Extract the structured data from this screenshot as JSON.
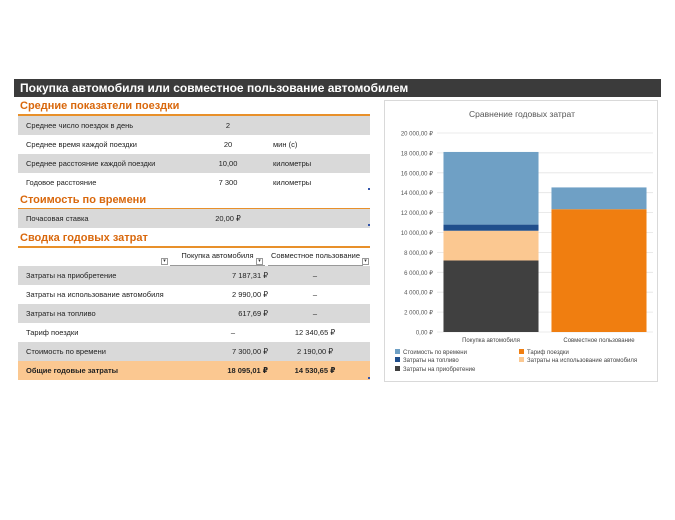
{
  "title": "Покупка автомобиля или совместное пользование автомобилем",
  "section1": {
    "heading": "Средние показатели поездки",
    "rows": [
      {
        "label": "Среднее число поездок в день",
        "value": "2",
        "unit": ""
      },
      {
        "label": "Среднее время каждой поездки",
        "value": "20",
        "unit": "мин (с)"
      },
      {
        "label": "Среднее расстояние каждой поездки",
        "value": "10,00",
        "unit": "километры"
      },
      {
        "label": "Годовое расстояние",
        "value": "7 300",
        "unit": "километры"
      }
    ]
  },
  "section2": {
    "heading": "Стоимость по времени",
    "rows": [
      {
        "label": "Почасовая ставка",
        "value": "20,00 ₽"
      }
    ]
  },
  "section3": {
    "heading": "Сводка годовых затрат",
    "headers": [
      "Покупка автомобиля",
      "Совместное пользование"
    ],
    "rows": [
      {
        "label": "Затраты на приобретение",
        "buy": "7 187,31 ₽",
        "share": "–"
      },
      {
        "label": "Затраты на использование автомобиля",
        "buy": "2 990,00 ₽",
        "share": "–"
      },
      {
        "label": "Затраты на топливо",
        "buy": "617,69 ₽",
        "share": "–"
      },
      {
        "label": "Тариф поездки",
        "buy": "–",
        "share": "12 340,65 ₽"
      },
      {
        "label": "Стоимость по времени",
        "buy": "7 300,00 ₽",
        "share": "2 190,00 ₽"
      }
    ],
    "total": {
      "label": "Общие годовые затраты",
      "buy": "18 095,01 ₽",
      "share": "14 530,65 ₽"
    }
  },
  "chart_data": {
    "type": "bar",
    "stacked": true,
    "title": "Сравнение годовых затрат",
    "categories": [
      "Покупка автомобиля",
      "Совместное пользование"
    ],
    "ylim": [
      0,
      20000
    ],
    "yticks": [
      0,
      2000,
      4000,
      6000,
      8000,
      10000,
      12000,
      14000,
      16000,
      18000,
      20000
    ],
    "ytick_labels": [
      "0,00 ₽",
      "2 000,00 ₽",
      "4 000,00 ₽",
      "6 000,00 ₽",
      "8 000,00 ₽",
      "10 000,00 ₽",
      "12 000,00 ₽",
      "14 000,00 ₽",
      "16 000,00 ₽",
      "18 000,00 ₽",
      "20 000,00 ₽"
    ],
    "grid": true,
    "legend_position": "bottom",
    "series": [
      {
        "name": "Затраты на приобретение",
        "color": "#404040",
        "values": [
          7187.31,
          0
        ]
      },
      {
        "name": "Затраты на использование автомобиля",
        "color": "#fbc891",
        "values": [
          2990.0,
          0
        ]
      },
      {
        "name": "Затраты на топливо",
        "color": "#1f4e8c",
        "values": [
          617.69,
          0
        ]
      },
      {
        "name": "Тариф поездки",
        "color": "#f07e10",
        "values": [
          0,
          12340.65
        ]
      },
      {
        "name": "Стоимость по времени",
        "color": "#6fa0c5",
        "values": [
          7300.0,
          2190.0
        ]
      }
    ],
    "legend_order": [
      4,
      3,
      2,
      1,
      0
    ]
  }
}
